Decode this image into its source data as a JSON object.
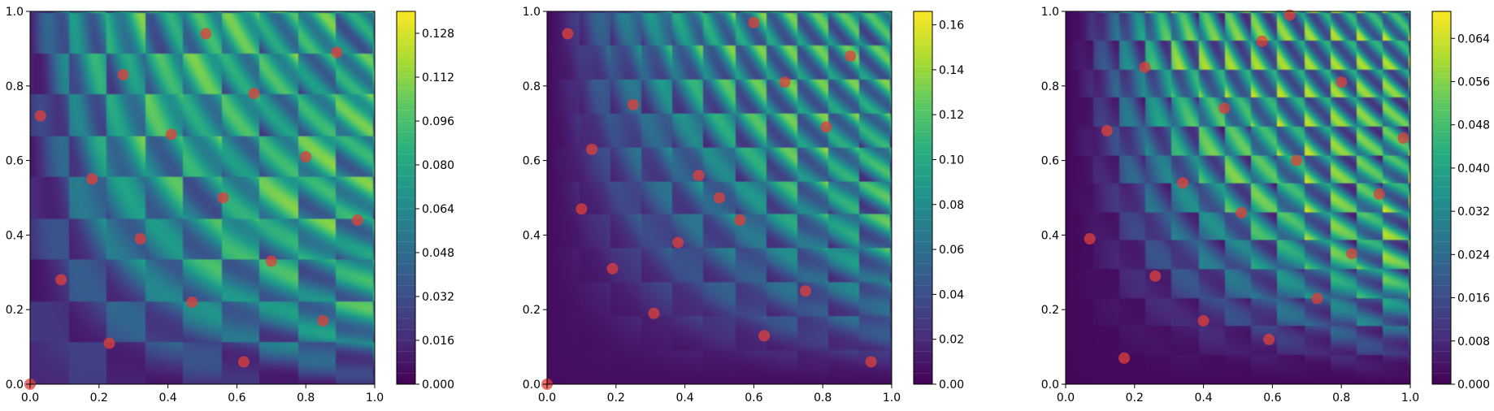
{
  "chart_data": [
    {
      "type": "heatmap",
      "title": "",
      "xlabel": "",
      "ylabel": "",
      "xlim": [
        0,
        1
      ],
      "ylim": [
        0,
        1
      ],
      "x_ticks": [
        "0.0",
        "0.2",
        "0.4",
        "0.6",
        "0.8",
        "1.0"
      ],
      "y_ticks": [
        "0.0",
        "0.2",
        "0.4",
        "0.6",
        "0.8",
        "1.0"
      ],
      "colorbar": {
        "colormap": "viridis",
        "range": [
          0,
          0.136
        ],
        "ticks": [
          "0.000",
          "0.016",
          "0.032",
          "0.048",
          "0.064",
          "0.080",
          "0.096",
          "0.112",
          "0.128"
        ]
      },
      "points_color": "#e0403a",
      "points": [
        [
          0.0,
          0.0
        ],
        [
          0.03,
          0.72
        ],
        [
          0.09,
          0.28
        ],
        [
          0.18,
          0.55
        ],
        [
          0.23,
          0.11
        ],
        [
          0.27,
          0.83
        ],
        [
          0.32,
          0.39
        ],
        [
          0.41,
          0.67
        ],
        [
          0.47,
          0.22
        ],
        [
          0.51,
          0.94
        ],
        [
          0.56,
          0.5
        ],
        [
          0.62,
          0.06
        ],
        [
          0.65,
          0.78
        ],
        [
          0.7,
          0.33
        ],
        [
          0.8,
          0.61
        ],
        [
          0.85,
          0.17
        ],
        [
          0.89,
          0.89
        ],
        [
          0.95,
          0.44
        ]
      ]
    },
    {
      "type": "heatmap",
      "title": "",
      "xlabel": "",
      "ylabel": "",
      "xlim": [
        0,
        1
      ],
      "ylim": [
        0,
        1
      ],
      "x_ticks": [
        "0.0",
        "0.2",
        "0.4",
        "0.6",
        "0.8",
        "1.0"
      ],
      "y_ticks": [
        "0.0",
        "0.2",
        "0.4",
        "0.6",
        "0.8",
        "1.0"
      ],
      "colorbar": {
        "colormap": "viridis",
        "range": [
          0,
          0.166
        ],
        "ticks": [
          "0.00",
          "0.02",
          "0.04",
          "0.06",
          "0.08",
          "0.10",
          "0.12",
          "0.14",
          "0.16"
        ]
      },
      "points_color": "#e0403a",
      "points": [
        [
          0.0,
          0.0
        ],
        [
          0.06,
          0.94
        ],
        [
          0.1,
          0.47
        ],
        [
          0.13,
          0.63
        ],
        [
          0.19,
          0.31
        ],
        [
          0.25,
          0.75
        ],
        [
          0.31,
          0.19
        ],
        [
          0.38,
          0.38
        ],
        [
          0.44,
          0.56
        ],
        [
          0.5,
          0.5
        ],
        [
          0.56,
          0.44
        ],
        [
          0.6,
          0.97
        ],
        [
          0.63,
          0.13
        ],
        [
          0.69,
          0.81
        ],
        [
          0.75,
          0.25
        ],
        [
          0.81,
          0.69
        ],
        [
          0.88,
          0.88
        ],
        [
          0.94,
          0.06
        ]
      ]
    },
    {
      "type": "heatmap",
      "title": "",
      "xlabel": "",
      "ylabel": "",
      "xlim": [
        0,
        1
      ],
      "ylim": [
        0,
        1
      ],
      "x_ticks": [
        "0.0",
        "0.2",
        "0.4",
        "0.6",
        "0.8",
        "1.0"
      ],
      "y_ticks": [
        "0.0",
        "0.2",
        "0.4",
        "0.6",
        "0.8",
        "1.0"
      ],
      "colorbar": {
        "colormap": "viridis",
        "range": [
          0,
          0.069
        ],
        "ticks": [
          "0.000",
          "0.008",
          "0.016",
          "0.024",
          "0.032",
          "0.040",
          "0.048",
          "0.056",
          "0.064"
        ]
      },
      "points_color": "#e0403a",
      "points": [
        [
          0.07,
          0.39
        ],
        [
          0.12,
          0.68
        ],
        [
          0.17,
          0.07
        ],
        [
          0.23,
          0.85
        ],
        [
          0.26,
          0.29
        ],
        [
          0.34,
          0.54
        ],
        [
          0.4,
          0.17
        ],
        [
          0.46,
          0.74
        ],
        [
          0.51,
          0.46
        ],
        [
          0.57,
          0.92
        ],
        [
          0.59,
          0.12
        ],
        [
          0.65,
          0.99
        ],
        [
          0.67,
          0.6
        ],
        [
          0.73,
          0.23
        ],
        [
          0.8,
          0.81
        ],
        [
          0.83,
          0.35
        ],
        [
          0.91,
          0.51
        ],
        [
          0.98,
          0.66
        ]
      ]
    }
  ]
}
